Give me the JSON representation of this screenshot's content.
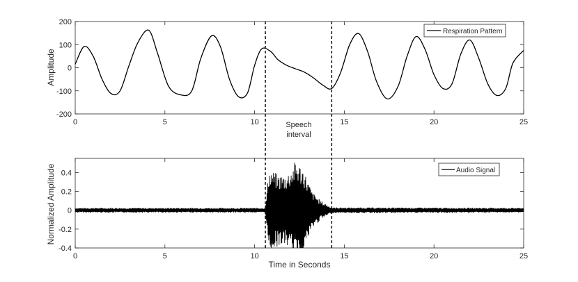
{
  "chart_data": [
    {
      "type": "line",
      "series": [
        {
          "name": "Respiration Pattern",
          "x": [
            0,
            0.5,
            1.0,
            1.5,
            2.0,
            2.5,
            3.0,
            3.5,
            4.1,
            4.6,
            5.2,
            5.9,
            6.5,
            7.0,
            7.6,
            8.1,
            8.6,
            9.1,
            9.6,
            10.0,
            10.4,
            10.9,
            11.3,
            11.8,
            12.3,
            12.8,
            13.3,
            13.8,
            14.3,
            14.8,
            15.3,
            15.8,
            16.3,
            16.8,
            17.4,
            18.0,
            18.5,
            19.0,
            19.5,
            20.0,
            20.5,
            21.0,
            21.5,
            22.0,
            22.5,
            23.0,
            23.5,
            24.0,
            24.4,
            25.0
          ],
          "y": [
            15,
            92,
            50,
            -50,
            -112,
            -100,
            10,
            110,
            162,
            60,
            -80,
            -118,
            -100,
            40,
            138,
            90,
            -50,
            -125,
            -110,
            10,
            82,
            70,
            35,
            10,
            -5,
            -20,
            -45,
            -75,
            -90,
            -20,
            100,
            148,
            70,
            -60,
            -135,
            -80,
            50,
            135,
            80,
            -30,
            -90,
            -70,
            60,
            120,
            40,
            -70,
            -120,
            -90,
            20,
            75
          ]
        }
      ],
      "xlim": [
        0,
        25
      ],
      "ylim": [
        -200,
        200
      ],
      "xticks": [
        0,
        5,
        10,
        15,
        20,
        25
      ],
      "yticks": [
        200,
        100,
        0,
        -100,
        -200
      ],
      "xlabel": "",
      "ylabel": "Amplitude",
      "legend_position": "top-right",
      "grid": false
    },
    {
      "type": "line",
      "series": [
        {
          "name": "Audio Signal",
          "envelope": {
            "x": [
              0,
              10.6,
              10.8,
              11.3,
              11.8,
              12.3,
              12.7,
              13.2,
              13.7,
              14.3,
              25
            ],
            "y": [
              0.025,
              0.025,
              0.44,
              0.38,
              0.38,
              0.53,
              0.45,
              0.2,
              0.1,
              0.03,
              0.025
            ]
          }
        }
      ],
      "xlim": [
        0,
        25
      ],
      "ylim": [
        -0.4,
        0.55
      ],
      "xticks": [
        0,
        5,
        10,
        15,
        20,
        25
      ],
      "yticks": [
        0.4,
        0.2,
        0,
        -0.2,
        -0.4
      ],
      "xlabel": "Time in Seconds",
      "ylabel": "Normalized Amplitude",
      "legend_position": "top-right",
      "grid": false
    }
  ],
  "speech_interval": {
    "start": 10.6,
    "end": 14.3,
    "label_line1": "Speech",
    "label_line2": "interval"
  },
  "tick_labels": {
    "x": [
      "0",
      "5",
      "10",
      "15",
      "20",
      "25"
    ],
    "top_y": [
      "200",
      "100",
      "0",
      "-100",
      "-200"
    ],
    "bottom_y": [
      "0.4",
      "0.2",
      "0",
      "-0.2",
      "-0.4"
    ]
  }
}
